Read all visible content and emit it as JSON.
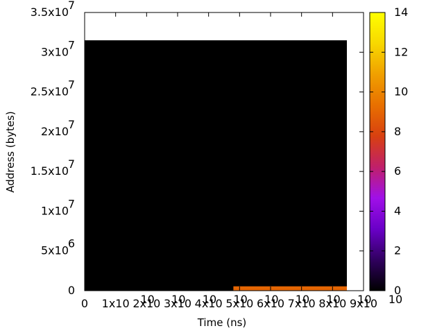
{
  "chart_data": {
    "type": "heatmap",
    "xlabel": "Time (ns)",
    "ylabel": "Address (bytes)",
    "xlim": [
      0,
      90000000000
    ],
    "ylim": [
      0,
      35000000
    ],
    "x_ticks": [
      {
        "value": 0,
        "label": "0",
        "exp": ""
      },
      {
        "value": 10000000000,
        "label": "1x10",
        "exp": "10"
      },
      {
        "value": 20000000000,
        "label": "2x10",
        "exp": "10"
      },
      {
        "value": 30000000000,
        "label": "3x10",
        "exp": "10"
      },
      {
        "value": 40000000000,
        "label": "4x10",
        "exp": "10"
      },
      {
        "value": 50000000000,
        "label": "5x10",
        "exp": "10"
      },
      {
        "value": 60000000000,
        "label": "6x10",
        "exp": "10"
      },
      {
        "value": 70000000000,
        "label": "7x10",
        "exp": "10"
      },
      {
        "value": 80000000000,
        "label": "8x10",
        "exp": "10"
      },
      {
        "value": 90000000000,
        "label": "9x10",
        "exp": "10"
      }
    ],
    "y_ticks": [
      {
        "value": 0,
        "label": "0",
        "exp": ""
      },
      {
        "value": 5000000,
        "label": "5x10",
        "exp": "6"
      },
      {
        "value": 10000000,
        "label": "1x10",
        "exp": "7"
      },
      {
        "value": 15000000,
        "label": "1.5x10",
        "exp": "7"
      },
      {
        "value": 20000000,
        "label": "2x10",
        "exp": "7"
      },
      {
        "value": 25000000,
        "label": "2.5x10",
        "exp": "7"
      },
      {
        "value": 30000000,
        "label": "3x10",
        "exp": "7"
      },
      {
        "value": 35000000,
        "label": "3.5x10",
        "exp": "7"
      }
    ],
    "colorbar": {
      "min": 0,
      "max": 14,
      "ticks": [
        "0",
        "2",
        "4",
        "6",
        "8",
        "10",
        "12",
        "14"
      ],
      "palette": [
        "#000000",
        "#30005f",
        "#6a00c8",
        "#a010e8",
        "#c0206a",
        "#d84010",
        "#e87000",
        "#f0a000",
        "#f8d800",
        "#ffff00"
      ]
    },
    "cells": [
      {
        "x0": 0,
        "x1": 90000000000,
        "y0": 0,
        "y1": 31500000,
        "value": 0
      },
      {
        "x0": 48000000000,
        "x1": 90000000000,
        "y0": 0,
        "y1": 550000,
        "value": 9
      }
    ],
    "grid": false,
    "legend": "colorbar-right"
  }
}
